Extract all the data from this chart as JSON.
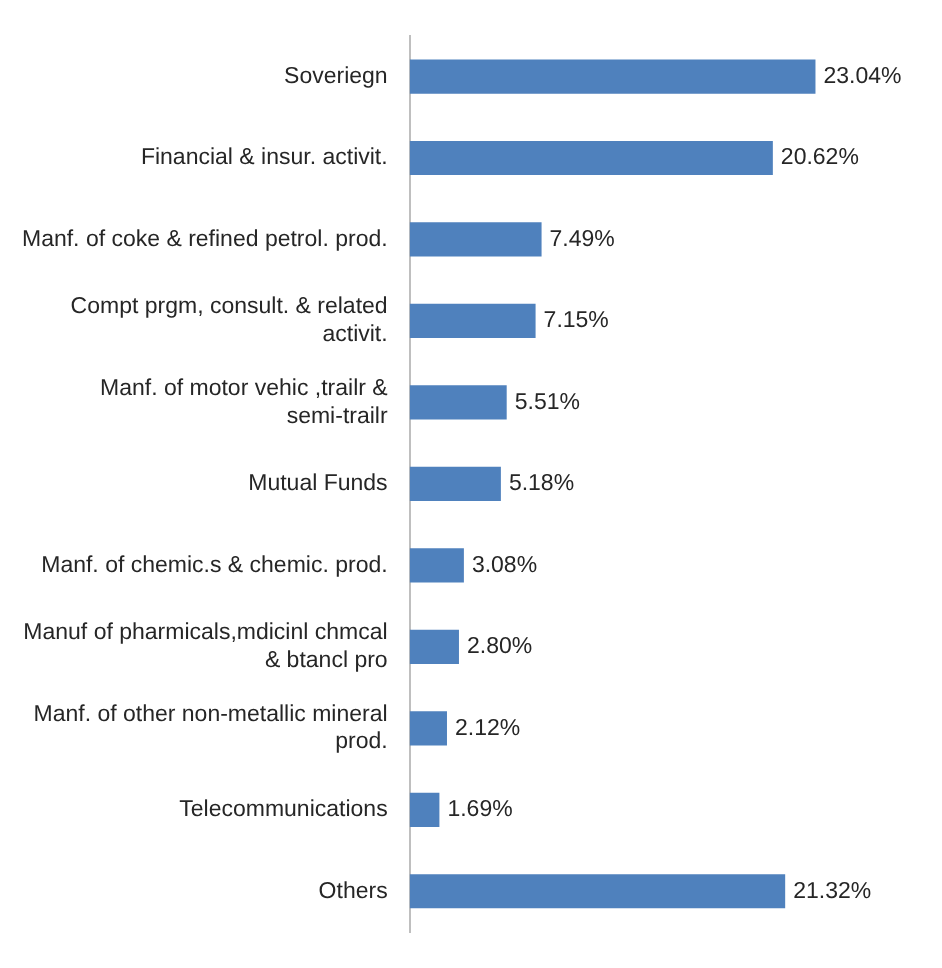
{
  "chart_data": {
    "type": "bar",
    "orientation": "horizontal",
    "categories": [
      "Soveriegn",
      "Financial & insur. activit.",
      "Manf. of coke & refined petrol. prod.",
      "Compt prgm, consult. & related activit.",
      "Manf. of motor vehic ,trailr & semi-trailr",
      "Mutual Funds",
      "Manf. of chemic.s & chemic. prod.",
      "Manuf of pharmicals,mdicinl chmcal & btancl pro",
      "Manf. of other non-metallic mineral prod.",
      "Telecommunications",
      "Others"
    ],
    "values": [
      23.04,
      20.62,
      7.49,
      7.15,
      5.51,
      5.18,
      3.08,
      2.8,
      2.12,
      1.69,
      21.32
    ],
    "value_labels": [
      "23.04%",
      "20.62%",
      "7.49%",
      "7.15%",
      "5.51%",
      "5.18%",
      "3.08%",
      "2.80%",
      "2.12%",
      "1.69%",
      "21.32%"
    ],
    "color": "#4f81bd",
    "relative": false,
    "grid": false,
    "legend": false
  }
}
